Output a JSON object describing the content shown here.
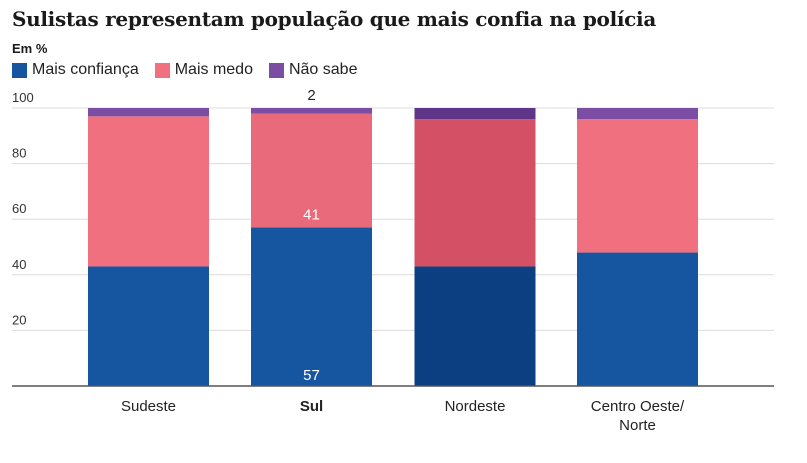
{
  "chart_data": {
    "type": "bar",
    "stacked": true,
    "title": "Sulistas representam população que mais confia na polícia",
    "subtitle": "Em %",
    "categories": [
      "Sudeste",
      "Sul",
      "Nordeste",
      "Centro Oeste/ Norte"
    ],
    "category_lines": [
      [
        "Sudeste"
      ],
      [
        "Sul"
      ],
      [
        "Nordeste"
      ],
      [
        "Centro Oeste/",
        "Norte"
      ]
    ],
    "highlight_category": "Sul",
    "ylim": [
      0,
      100
    ],
    "yticks": [
      20,
      40,
      60,
      80,
      100
    ],
    "grid": true,
    "legend_position": "top-left",
    "series": [
      {
        "name": "Mais confiança",
        "color": "#1656a0",
        "values": [
          43,
          57,
          43,
          48
        ]
      },
      {
        "name": "Mais medo",
        "color": "#f07080",
        "values": [
          54,
          41,
          53,
          48
        ]
      },
      {
        "name": "Não sabe",
        "color": "#7b4ea3",
        "values": [
          3,
          2,
          4,
          4
        ]
      }
    ],
    "highlight_colors": {
      "Nordeste": [
        "#0b3f82",
        "#d45065",
        "#5e3589"
      ],
      "Sul": [
        "#1656a0",
        "#e96a7a",
        "#7b4ea3"
      ]
    },
    "data_labels": [
      {
        "category": "Sul",
        "series": "Mais confiança",
        "text": "57"
      },
      {
        "category": "Sul",
        "series": "Mais medo",
        "text": "41"
      },
      {
        "category": "Sul",
        "series": "Não sabe",
        "text": "2"
      }
    ]
  }
}
